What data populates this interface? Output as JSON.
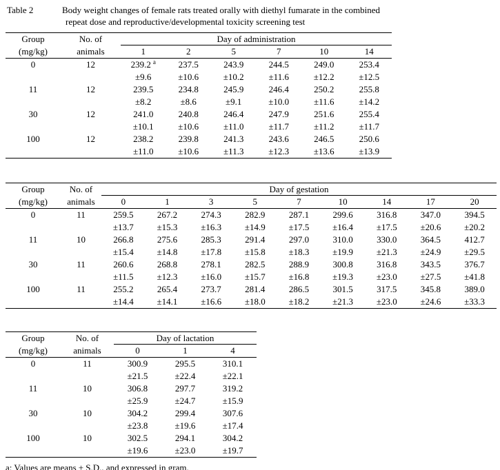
{
  "caption": {
    "label": "Table 2",
    "line1": "Body weight changes of female rats treated orally with diethyl fumarate in the combined",
    "line2": "repeat dose and reproductive/developmental toxicity screening test"
  },
  "footnote": "a: Values are means ± S.D., and expressed in gram.",
  "tables": [
    {
      "name": "administration",
      "col1_header": [
        "Group",
        "(mg/kg)"
      ],
      "col2_header": [
        "No. of",
        "animals"
      ],
      "span_header": "Day of administration",
      "day_labels": [
        "1",
        "2",
        "5",
        "7",
        "10",
        "14"
      ],
      "sup_marks": [
        {
          "row": 0,
          "col": 0,
          "text": "a"
        }
      ],
      "rows": [
        {
          "group": "0",
          "animals": "12",
          "means": [
            "239.2",
            "237.5",
            "243.9",
            "244.5",
            "249.0",
            "253.4"
          ],
          "sds": [
            "±9.6",
            "±10.6",
            "±10.2",
            "±11.6",
            "±12.2",
            "±12.5"
          ]
        },
        {
          "group": "11",
          "animals": "12",
          "means": [
            "239.5",
            "234.8",
            "245.9",
            "246.4",
            "250.2",
            "255.8"
          ],
          "sds": [
            "±8.2",
            "±8.6",
            "±9.1",
            "±10.0",
            "±11.6",
            "±14.2"
          ]
        },
        {
          "group": "30",
          "animals": "12",
          "means": [
            "241.0",
            "240.8",
            "246.4",
            "247.9",
            "251.6",
            "255.4"
          ],
          "sds": [
            "±10.1",
            "±10.6",
            "±11.0",
            "±11.7",
            "±11.2",
            "±11.7"
          ]
        },
        {
          "group": "100",
          "animals": "12",
          "means": [
            "238.2",
            "239.8",
            "241.3",
            "243.6",
            "246.5",
            "250.6"
          ],
          "sds": [
            "±11.0",
            "±10.6",
            "±11.3",
            "±12.3",
            "±13.6",
            "±13.9"
          ]
        }
      ]
    },
    {
      "name": "gestation",
      "col1_header": [
        "Group",
        "(mg/kg)"
      ],
      "col2_header": [
        "No. of",
        "animals"
      ],
      "span_header": "Day of gestation",
      "day_labels": [
        "0",
        "1",
        "3",
        "5",
        "7",
        "10",
        "14",
        "17",
        "20"
      ],
      "sup_marks": [],
      "rows": [
        {
          "group": "0",
          "animals": "11",
          "means": [
            "259.5",
            "267.2",
            "274.3",
            "282.9",
            "287.1",
            "299.6",
            "316.8",
            "347.0",
            "394.5"
          ],
          "sds": [
            "±13.7",
            "±15.3",
            "±16.3",
            "±14.9",
            "±17.5",
            "±16.4",
            "±17.5",
            "±20.6",
            "±20.2"
          ]
        },
        {
          "group": "11",
          "animals": "10",
          "means": [
            "266.8",
            "275.6",
            "285.3",
            "291.4",
            "297.0",
            "310.0",
            "330.0",
            "364.5",
            "412.7"
          ],
          "sds": [
            "±15.4",
            "±14.8",
            "±17.8",
            "±15.8",
            "±18.3",
            "±19.9",
            "±21.3",
            "±24.9",
            "±29.5"
          ]
        },
        {
          "group": "30",
          "animals": "11",
          "means": [
            "260.6",
            "268.8",
            "278.1",
            "282.5",
            "288.9",
            "300.8",
            "316.8",
            "343.5",
            "376.7"
          ],
          "sds": [
            "±11.5",
            "±12.3",
            "±16.0",
            "±15.7",
            "±16.8",
            "±19.3",
            "±23.0",
            "±27.5",
            "±41.8"
          ]
        },
        {
          "group": "100",
          "animals": "11",
          "means": [
            "255.2",
            "265.4",
            "273.7",
            "281.4",
            "286.5",
            "301.5",
            "317.5",
            "345.8",
            "389.0"
          ],
          "sds": [
            "±14.4",
            "±14.1",
            "±16.6",
            "±18.0",
            "±18.2",
            "±21.3",
            "±23.0",
            "±24.6",
            "±33.3"
          ]
        }
      ]
    },
    {
      "name": "lactation",
      "col1_header": [
        "Group",
        "(mg/kg)"
      ],
      "col2_header": [
        "No. of",
        "animals"
      ],
      "span_header": "Day of lactation",
      "day_labels": [
        "0",
        "1",
        "4"
      ],
      "sup_marks": [],
      "rows": [
        {
          "group": "0",
          "animals": "11",
          "means": [
            "300.9",
            "295.5",
            "310.1"
          ],
          "sds": [
            "±21.5",
            "±22.4",
            "±22.1"
          ]
        },
        {
          "group": "11",
          "animals": "10",
          "means": [
            "306.8",
            "297.7",
            "319.2"
          ],
          "sds": [
            "±25.9",
            "±24.7",
            "±15.9"
          ]
        },
        {
          "group": "30",
          "animals": "10",
          "means": [
            "304.2",
            "299.4",
            "307.6"
          ],
          "sds": [
            "±23.8",
            "±19.6",
            "±17.4"
          ]
        },
        {
          "group": "100",
          "animals": "10",
          "means": [
            "302.5",
            "294.1",
            "304.2"
          ],
          "sds": [
            "±19.6",
            "±23.0",
            "±19.7"
          ]
        }
      ]
    }
  ]
}
